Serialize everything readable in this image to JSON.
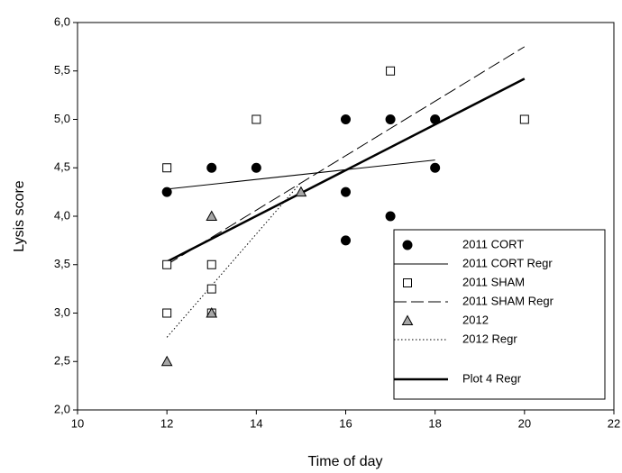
{
  "chart_data": {
    "type": "scatter",
    "x_label": "Time of day",
    "y_label": "Lysis score",
    "xlim": [
      10,
      22
    ],
    "xticks": [
      10,
      12,
      14,
      16,
      18,
      20,
      22
    ],
    "ylim": [
      2,
      6
    ],
    "yticks": [
      {
        "value": 2,
        "label": "2,0"
      },
      {
        "value": 2.5,
        "label": "2,5"
      },
      {
        "value": 3,
        "label": "3,0"
      },
      {
        "value": 3.5,
        "label": "3,5"
      },
      {
        "value": 4,
        "label": "4,0"
      },
      {
        "value": 4.5,
        "label": "4,5"
      },
      {
        "value": 5,
        "label": "5,0"
      },
      {
        "value": 5.5,
        "label": "5,5"
      },
      {
        "value": 6,
        "label": "6,0"
      }
    ],
    "legend": "bottom-right",
    "series": [
      {
        "name": "2011 CORT",
        "color": "#000000",
        "marker": "circle",
        "x": [
          12,
          13,
          14,
          16,
          16,
          16,
          17,
          17,
          18,
          18
        ],
        "values": [
          4.25,
          4.5,
          4.5,
          5.0,
          4.25,
          3.75,
          5.0,
          4.0,
          5.0,
          4.5
        ]
      },
      {
        "name": "2011 CORT Regr",
        "color": "#000000",
        "line_style": "solid",
        "x": [
          12,
          18
        ],
        "values": [
          4.28,
          4.58
        ]
      },
      {
        "name": "2011 SHAM",
        "color": "#ffffff",
        "marker": "square",
        "x": [
          12,
          12,
          12,
          13,
          13,
          13,
          14,
          17,
          20
        ],
        "values": [
          4.5,
          3.5,
          3.0,
          3.5,
          3.25,
          3.0,
          5.0,
          5.5,
          5.0
        ]
      },
      {
        "name": "2011 SHAM Regr",
        "color": "#000000",
        "line_style": "dashed",
        "x": [
          12,
          20
        ],
        "values": [
          3.5,
          5.75
        ]
      },
      {
        "name": "2012",
        "color": "#a6a6a6",
        "marker": "triangle",
        "x": [
          12,
          13,
          13,
          15
        ],
        "values": [
          2.5,
          4.0,
          3.0,
          4.25
        ]
      },
      {
        "name": "2012 Regr",
        "color": "#000000",
        "line_style": "dotted",
        "x": [
          12,
          15
        ],
        "values": [
          2.75,
          4.35
        ]
      },
      {
        "name": "Plot 4 Regr",
        "color": "#000000",
        "line_style": "bold",
        "x": [
          12,
          20
        ],
        "values": [
          3.53,
          5.42
        ]
      }
    ]
  }
}
